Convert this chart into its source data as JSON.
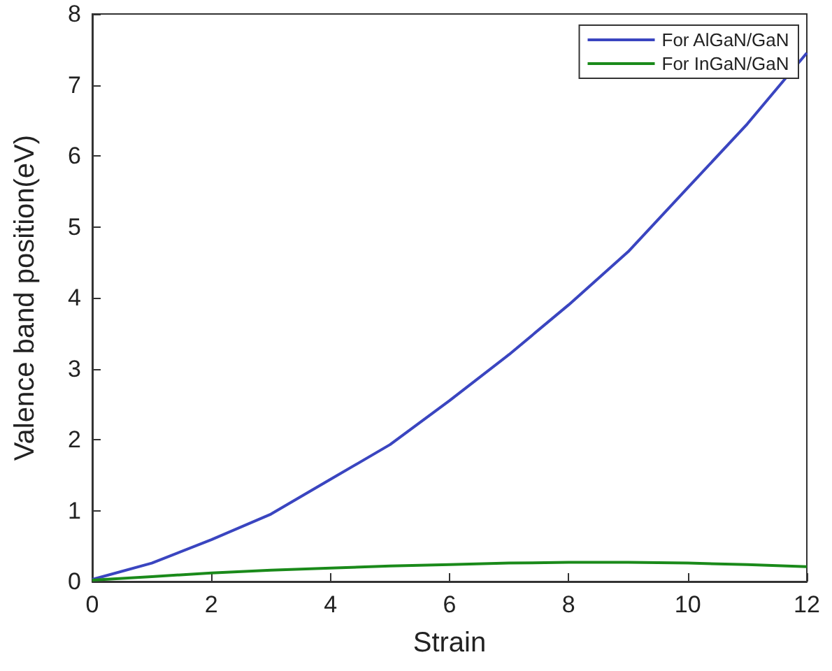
{
  "chart_data": {
    "type": "line",
    "xlabel": "Strain",
    "ylabel": "Valence band position(eV)",
    "x": [
      0,
      1,
      2,
      3,
      4,
      5,
      6,
      7,
      8,
      9,
      10,
      11,
      12
    ],
    "series": [
      {
        "name": "For AlGaN/GaN",
        "color": "#3a45c0",
        "values": [
          0.03,
          0.26,
          0.59,
          0.95,
          1.44,
          1.93,
          2.55,
          3.2,
          3.9,
          4.65,
          5.55,
          6.45,
          7.45
        ]
      },
      {
        "name": "For InGaN/GaN",
        "color": "#1a8a1a",
        "values": [
          0.02,
          0.07,
          0.12,
          0.16,
          0.19,
          0.22,
          0.24,
          0.26,
          0.27,
          0.27,
          0.26,
          0.24,
          0.21
        ]
      }
    ],
    "xlim": [
      0,
      12
    ],
    "xticks": [
      0,
      2,
      4,
      6,
      8,
      10,
      12
    ],
    "ylim": [
      0,
      8
    ],
    "yticks": [
      0,
      1,
      2,
      3,
      4,
      5,
      6,
      7,
      8
    ],
    "grid": false,
    "legend": "top right",
    "marker": "none",
    "line_style": "solid"
  }
}
